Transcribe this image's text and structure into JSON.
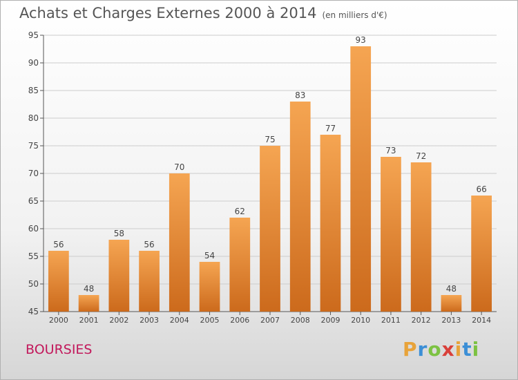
{
  "title": "Achats et Charges Externes 2000 à 2014",
  "subtitle": "(en milliers d'€)",
  "commune": "BOURSIES",
  "logo": {
    "letters": [
      "P",
      "r",
      "o",
      "x",
      "i",
      "t",
      "i"
    ],
    "colors": [
      "#e8a33a",
      "#3c8fd6",
      "#7cc242",
      "#d9403a",
      "#e8a33a",
      "#3c8fd6",
      "#7cc242"
    ]
  },
  "colors": {
    "bar_top": "#f5a552",
    "bar_bottom": "#cc6a1c",
    "grid": "#cccccc",
    "axis": "#555555",
    "text": "#444444"
  },
  "chart_data": {
    "type": "bar",
    "categories": [
      "2000",
      "2001",
      "2002",
      "2003",
      "2004",
      "2005",
      "2006",
      "2007",
      "2008",
      "2009",
      "2010",
      "2011",
      "2012",
      "2013",
      "2014"
    ],
    "values": [
      56,
      48,
      58,
      56,
      70,
      54,
      62,
      75,
      83,
      77,
      93,
      73,
      72,
      48,
      66
    ],
    "ylim": [
      45,
      95
    ],
    "yticks": [
      45,
      50,
      55,
      60,
      65,
      70,
      75,
      80,
      85,
      90,
      95
    ],
    "grid": true
  }
}
